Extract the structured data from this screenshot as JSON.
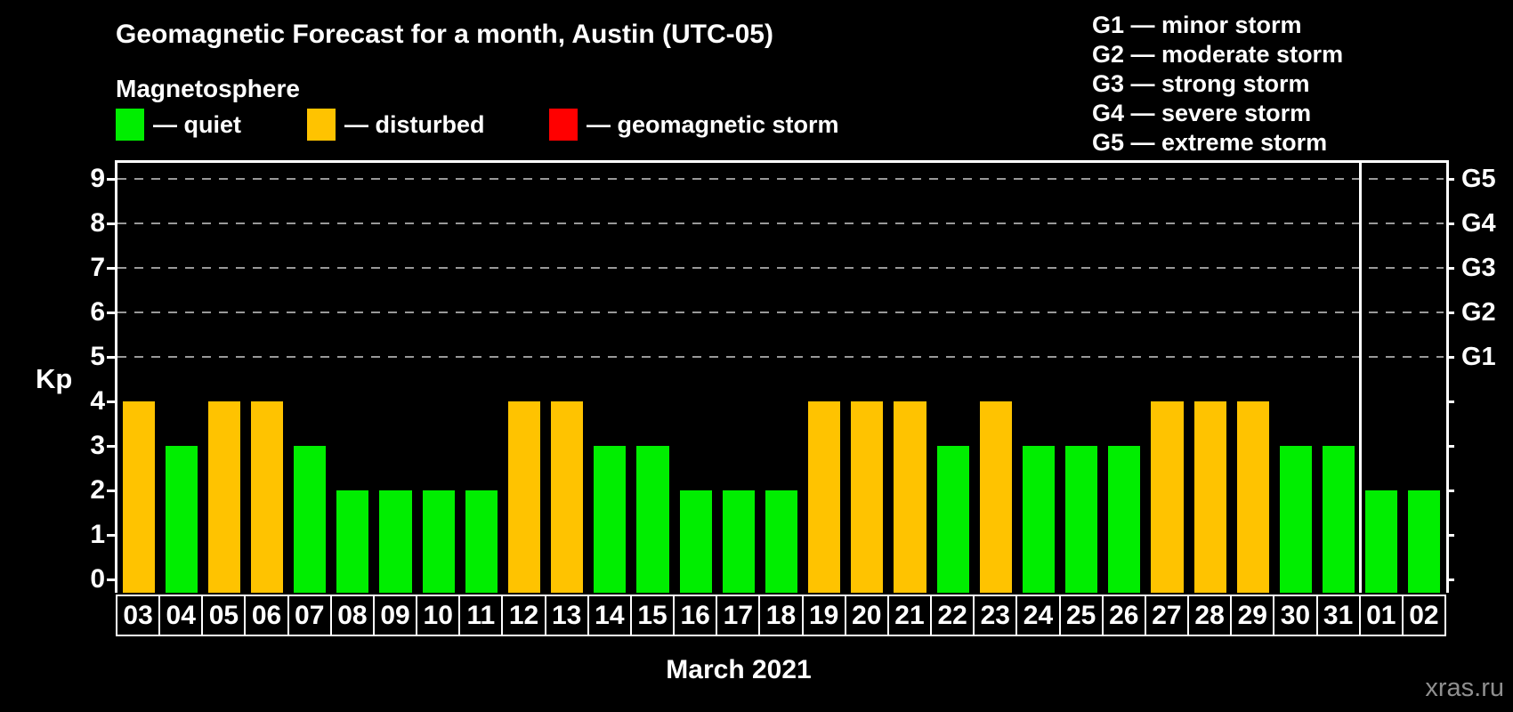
{
  "header": {
    "title": "Geomagnetic Forecast for a month, Austin (UTC-05)",
    "subtitle": "Magnetosphere",
    "legend_items": [
      {
        "label": "— quiet",
        "state": "quiet",
        "color": "#00ee00"
      },
      {
        "label": "— disturbed",
        "state": "disturbed",
        "color": "#ffc300"
      },
      {
        "label": "— geomagnetic storm",
        "state": "storm",
        "color": "#ff0000"
      }
    ],
    "g_scale_legend": [
      {
        "code": "G1",
        "desc": "minor storm"
      },
      {
        "code": "G2",
        "desc": "moderate storm"
      },
      {
        "code": "G3",
        "desc": "strong storm"
      },
      {
        "code": "G4",
        "desc": "severe storm"
      },
      {
        "code": "G5",
        "desc": "extreme storm"
      }
    ]
  },
  "chart_data": {
    "type": "bar",
    "title": "Geomagnetic Forecast for a month, Austin (UTC-05)",
    "ylabel": "Kp",
    "xlabel": "March 2021",
    "ylim": [
      0,
      9.4
    ],
    "y_ticks": [
      0,
      1,
      2,
      3,
      4,
      5,
      6,
      7,
      8,
      9
    ],
    "gridlines_at": [
      5,
      6,
      7,
      8,
      9
    ],
    "right_axis_labels": [
      {
        "label": "G1",
        "kp": 5
      },
      {
        "label": "G2",
        "kp": 6
      },
      {
        "label": "G3",
        "kp": 7
      },
      {
        "label": "G4",
        "kp": 8
      },
      {
        "label": "G5",
        "kp": 9
      }
    ],
    "categories": [
      "03",
      "04",
      "05",
      "06",
      "07",
      "08",
      "09",
      "10",
      "11",
      "12",
      "13",
      "14",
      "15",
      "16",
      "17",
      "18",
      "19",
      "20",
      "21",
      "22",
      "23",
      "24",
      "25",
      "26",
      "27",
      "28",
      "29",
      "30",
      "31",
      "01",
      "02"
    ],
    "values": [
      4,
      3,
      4,
      4,
      3,
      2,
      2,
      2,
      2,
      4,
      4,
      3,
      3,
      2,
      2,
      2,
      4,
      4,
      4,
      3,
      4,
      3,
      3,
      3,
      4,
      4,
      4,
      3,
      3,
      2,
      2
    ],
    "states": [
      "disturbed",
      "quiet",
      "disturbed",
      "disturbed",
      "quiet",
      "quiet",
      "quiet",
      "quiet",
      "quiet",
      "disturbed",
      "disturbed",
      "quiet",
      "quiet",
      "quiet",
      "quiet",
      "quiet",
      "disturbed",
      "disturbed",
      "disturbed",
      "quiet",
      "disturbed",
      "quiet",
      "quiet",
      "quiet",
      "disturbed",
      "disturbed",
      "disturbed",
      "quiet",
      "quiet",
      "quiet",
      "quiet"
    ],
    "month_boundary_after_index": 28,
    "legend_position": "top-left",
    "grid": true
  },
  "footer": {
    "month_label": "March 2021",
    "watermark": "xras.ru"
  },
  "colors": {
    "quiet": "#00ee00",
    "disturbed": "#ffc300",
    "storm": "#ff0000",
    "background": "#000000",
    "grid": "#999999",
    "axis": "#ffffff",
    "watermark": "#8f8f8f"
  }
}
